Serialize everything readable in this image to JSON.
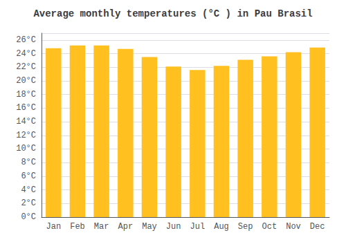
{
  "chart_data": {
    "type": "bar",
    "title": "Average monthly temperatures (°C ) in Pau Brasil",
    "categories": [
      "Jan",
      "Feb",
      "Mar",
      "Apr",
      "May",
      "Jun",
      "Jul",
      "Aug",
      "Sep",
      "Oct",
      "Nov",
      "Dec"
    ],
    "values": [
      24.8,
      25.2,
      25.2,
      24.7,
      23.5,
      22.1,
      21.6,
      22.2,
      23.1,
      23.6,
      24.2,
      24.9
    ],
    "color": "#FFC020",
    "ylim": [
      0,
      27
    ],
    "yticks": [
      {
        "value": 0,
        "label": "0°C"
      },
      {
        "value": 2,
        "label": "2°C"
      },
      {
        "value": 4,
        "label": "4°C"
      },
      {
        "value": 6,
        "label": "6°C"
      },
      {
        "value": 8,
        "label": "8°C"
      },
      {
        "value": 10,
        "label": "10°C"
      },
      {
        "value": 12,
        "label": "12°C"
      },
      {
        "value": 14,
        "label": "14°C"
      },
      {
        "value": 16,
        "label": "16°C"
      },
      {
        "value": 18,
        "label": "18°C"
      },
      {
        "value": 20,
        "label": "20°C"
      },
      {
        "value": 22,
        "label": "22°C"
      },
      {
        "value": 24,
        "label": "24°C"
      },
      {
        "value": 26,
        "label": "26°C"
      }
    ],
    "grid": true
  }
}
